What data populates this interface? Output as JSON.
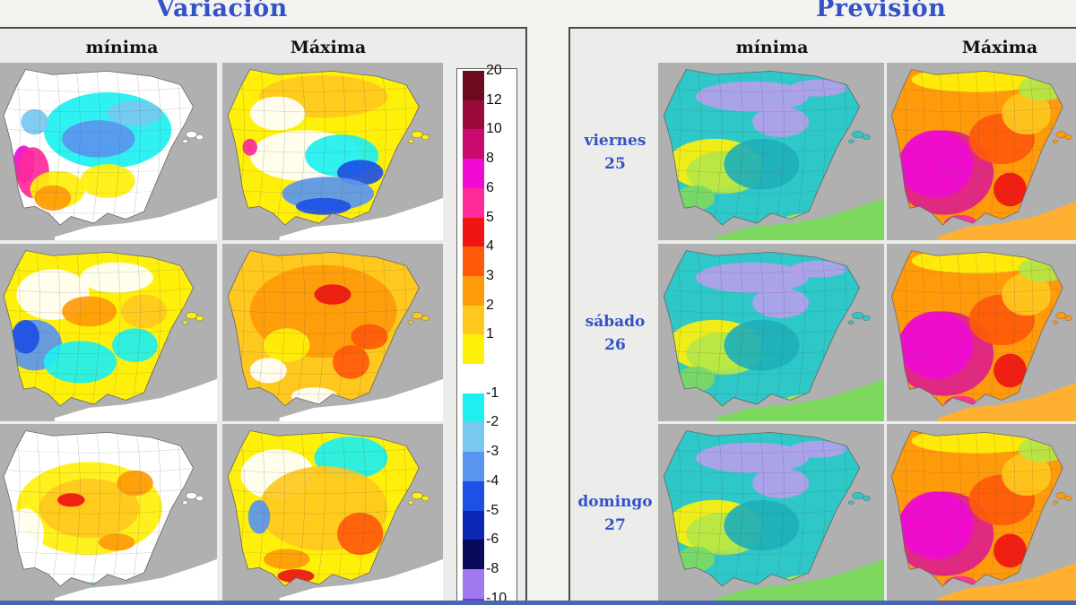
{
  "sections": {
    "left_title": "Variación",
    "right_title": "Previsión"
  },
  "columns": {
    "min": "mínima",
    "max": "Máxima"
  },
  "days": [
    {
      "name": "viernes",
      "num": "25"
    },
    {
      "name": "sábado",
      "num": "26"
    },
    {
      "name": "domingo",
      "num": "27"
    }
  ],
  "legend": [
    {
      "label": "20",
      "color": "#6e0a1e"
    },
    {
      "label": "12",
      "color": "#9a0a3c"
    },
    {
      "label": "10",
      "color": "#c80a6e"
    },
    {
      "label": "8",
      "color": "#f00ad2"
    },
    {
      "label": "6",
      "color": "#ff2a9a"
    },
    {
      "label": "5",
      "color": "#f01414"
    },
    {
      "label": "4",
      "color": "#ff5a0a"
    },
    {
      "label": "3",
      "color": "#ff9a0a"
    },
    {
      "label": "2",
      "color": "#ffc81e"
    },
    {
      "label": "1",
      "color": "#fff00a"
    },
    {
      "label": "",
      "color": "#ffffff"
    },
    {
      "label": "-1",
      "color": "#1ef0f0"
    },
    {
      "label": "-2",
      "color": "#78c8f0"
    },
    {
      "label": "-3",
      "color": "#5a96f0"
    },
    {
      "label": "-4",
      "color": "#1e50e6"
    },
    {
      "label": "-5",
      "color": "#0a28b4"
    },
    {
      "label": "-6",
      "color": "#0a0a5a"
    },
    {
      "label": "-8",
      "color": "#a078f0"
    },
    {
      "label": "-10",
      "color": "#7832d2"
    }
  ],
  "colors": {
    "title_blue": "#3352c9",
    "sea_grey": "#b0b0b0",
    "land_white": "#ffffff",
    "africa_white": "#f4f4f4"
  }
}
